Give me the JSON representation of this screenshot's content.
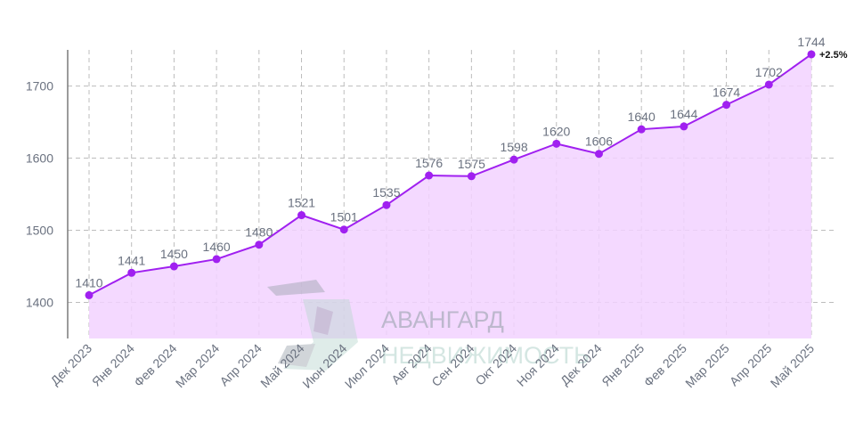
{
  "chart_data": {
    "type": "area",
    "title": "",
    "xlabel": "",
    "ylabel": "",
    "ylim": [
      1350,
      1760
    ],
    "yticks": [
      1400,
      1500,
      1600,
      1700
    ],
    "grid": true,
    "legend": "none",
    "categories": [
      "Дек 2023",
      "Янв 2024",
      "Фев 2024",
      "Мар 2024",
      "Апр 2024",
      "Май 2024",
      "Июн 2024",
      "Июл 2024",
      "Авг 2024",
      "Сен 2024",
      "Окт 2024",
      "Ноя 2024",
      "Дек 2024",
      "Янв 2025",
      "Фев 2025",
      "Мар 2025",
      "Апр 2025",
      "Май 2025"
    ],
    "series": [
      {
        "values": [
          1410,
          1441,
          1450,
          1460,
          1480,
          1521,
          1501,
          1535,
          1576,
          1575,
          1598,
          1620,
          1606,
          1640,
          1644,
          1674,
          1702,
          1744
        ],
        "labels": [
          "1410",
          "1441",
          "1450",
          "1460",
          "1480",
          "1521",
          "1501",
          "1535",
          "1576",
          "1575",
          "1598",
          "1620",
          "1606",
          "1640",
          "1644",
          "1674",
          "1702",
          "1744"
        ],
        "color": "#a020f0",
        "fill": "#f2d2ff"
      }
    ],
    "annotation": "+2.5%"
  },
  "watermark": {
    "line1": "АВАНГАРД",
    "line2": "НЕДВИЖИМОСТЬ",
    "color1": "#9aa3ad",
    "color2": "#b9d7cf"
  }
}
